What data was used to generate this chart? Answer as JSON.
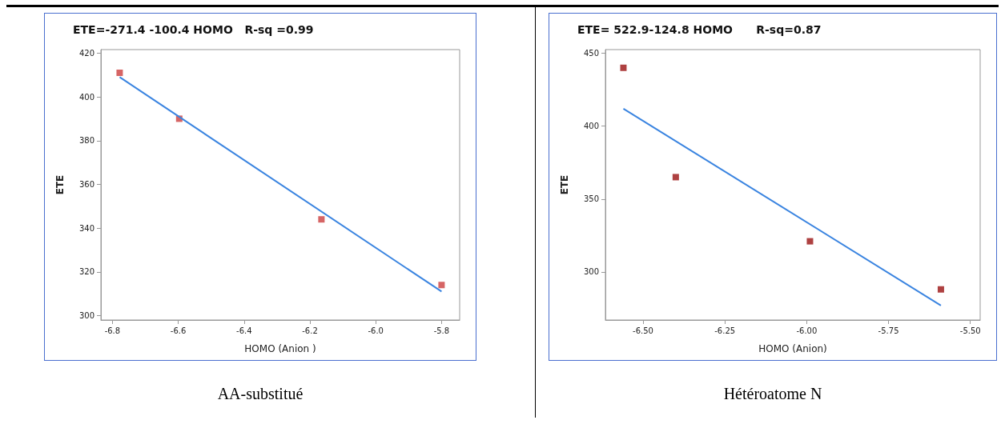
{
  "chart_data": [
    {
      "type": "scatter",
      "title": "ETE=-271.4 -100.4 HOMO   R-sq =0.99",
      "xlabel": "HOMO (Anion )",
      "ylabel": "ETE",
      "grid": false,
      "xlim": [
        -6.835,
        -5.745
      ],
      "xticks": [
        -6.8,
        -6.6,
        -6.4,
        -6.2,
        {
          "value": -6,
          "label": "-6.0"
        },
        -5.8
      ],
      "ylim": [
        298,
        421.6
      ],
      "yticks": [
        300,
        320,
        340,
        360,
        380,
        400,
        420
      ],
      "series": [
        {
          "color": "#cc3f3f",
          "marker": "square",
          "x": [
            -6.778,
            -6.597,
            -6.165,
            -5.8
          ],
          "values": [
            411,
            390,
            344,
            314
          ]
        },
        {
          "type": "line",
          "color": "#3a84e0",
          "line_style": "solid",
          "x": [
            -6.778,
            -5.8
          ],
          "values": [
            409,
            311
          ]
        }
      ],
      "annotations": [
        "AA-substitué"
      ]
    },
    {
      "type": "scatter",
      "title": "ETE= 522.9-124.8 HOMO      R-sq=0.87",
      "xlabel": "HOMO (Anion)",
      "ylabel": "ETE",
      "grid": false,
      "xlim": [
        -6.615,
        -5.47
      ],
      "xticks": [
        {
          "value": -6.5,
          "label": "-6.50"
        },
        {
          "value": -6.25,
          "label": "-6.25"
        },
        {
          "value": -6,
          "label": "-6.00"
        },
        {
          "value": -5.75,
          "label": "-5.75"
        },
        {
          "value": -5.5,
          "label": "-5.50"
        }
      ],
      "ylim": [
        267,
        452.5
      ],
      "yticks": [
        300,
        350,
        400,
        450
      ],
      "series": [
        {
          "color": "#9a1212",
          "marker": "square",
          "x": [
            -6.56,
            -6.4,
            -5.99,
            -5.59
          ],
          "values": [
            440,
            365,
            321,
            288
          ]
        },
        {
          "type": "line",
          "color": "#3a84e0",
          "line_style": "solid",
          "x": [
            -6.56,
            -5.59
          ],
          "values": [
            412,
            277
          ]
        }
      ],
      "annotations": [
        "Hétéroatome N"
      ]
    }
  ]
}
